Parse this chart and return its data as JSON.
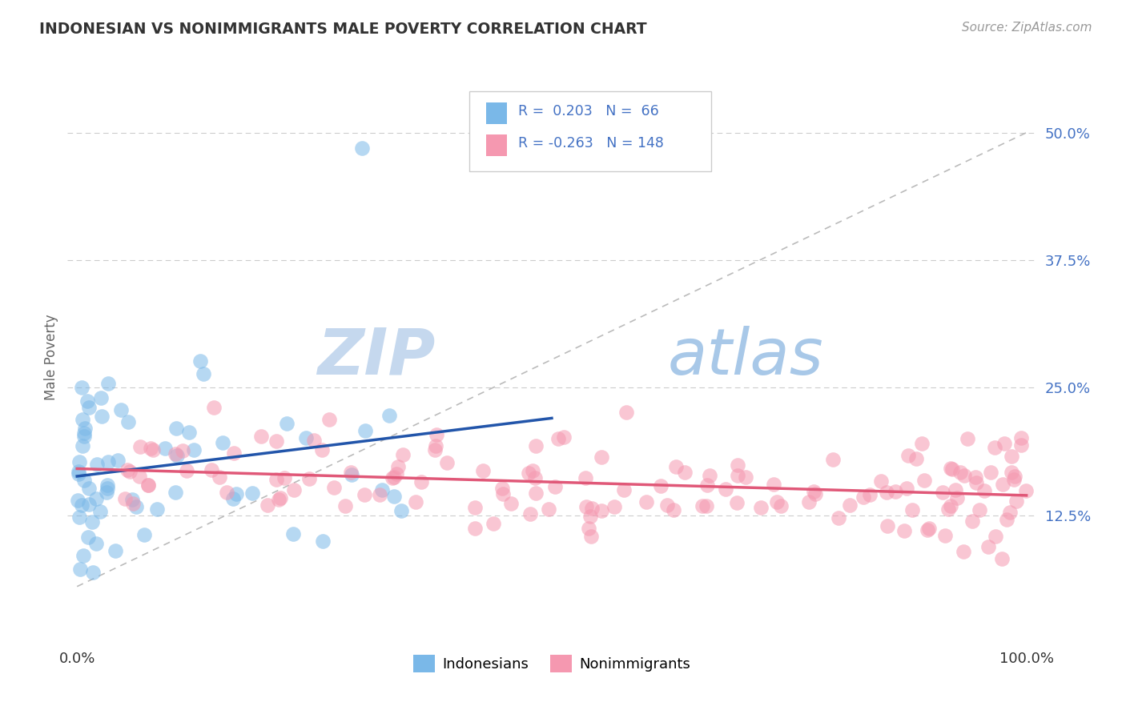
{
  "title": "INDONESIAN VS NONIMMIGRANTS MALE POVERTY CORRELATION CHART",
  "source_text": "Source: ZipAtlas.com",
  "ylabel": "Male Poverty",
  "watermark_zip": "ZIP",
  "watermark_atlas": "atlas",
  "xlim": [
    0.0,
    100.0
  ],
  "ylim": [
    0.0,
    0.55
  ],
  "ytick_vals": [
    0.125,
    0.25,
    0.375,
    0.5
  ],
  "ytick_labels": [
    "12.5%",
    "25.0%",
    "37.5%",
    "50.0%"
  ],
  "r_indonesian": 0.203,
  "n_indonesian": 66,
  "r_nonimmigrant": -0.263,
  "n_nonimmigrant": 148,
  "blue_scatter_color": "#7ab8e8",
  "pink_scatter_color": "#f598b0",
  "blue_line_color": "#2255aa",
  "pink_line_color": "#e05878",
  "diag_line_color": "#bbbbbb",
  "grid_color": "#cccccc",
  "background_color": "#ffffff",
  "title_color": "#333333",
  "source_color": "#999999",
  "ylabel_color": "#666666",
  "ytick_color": "#4472c4",
  "xtick_color": "#333333",
  "legend_text_color": "#4472c4",
  "watermark_zip_color": "#c5d8ee",
  "watermark_atlas_color": "#a8c8e8"
}
